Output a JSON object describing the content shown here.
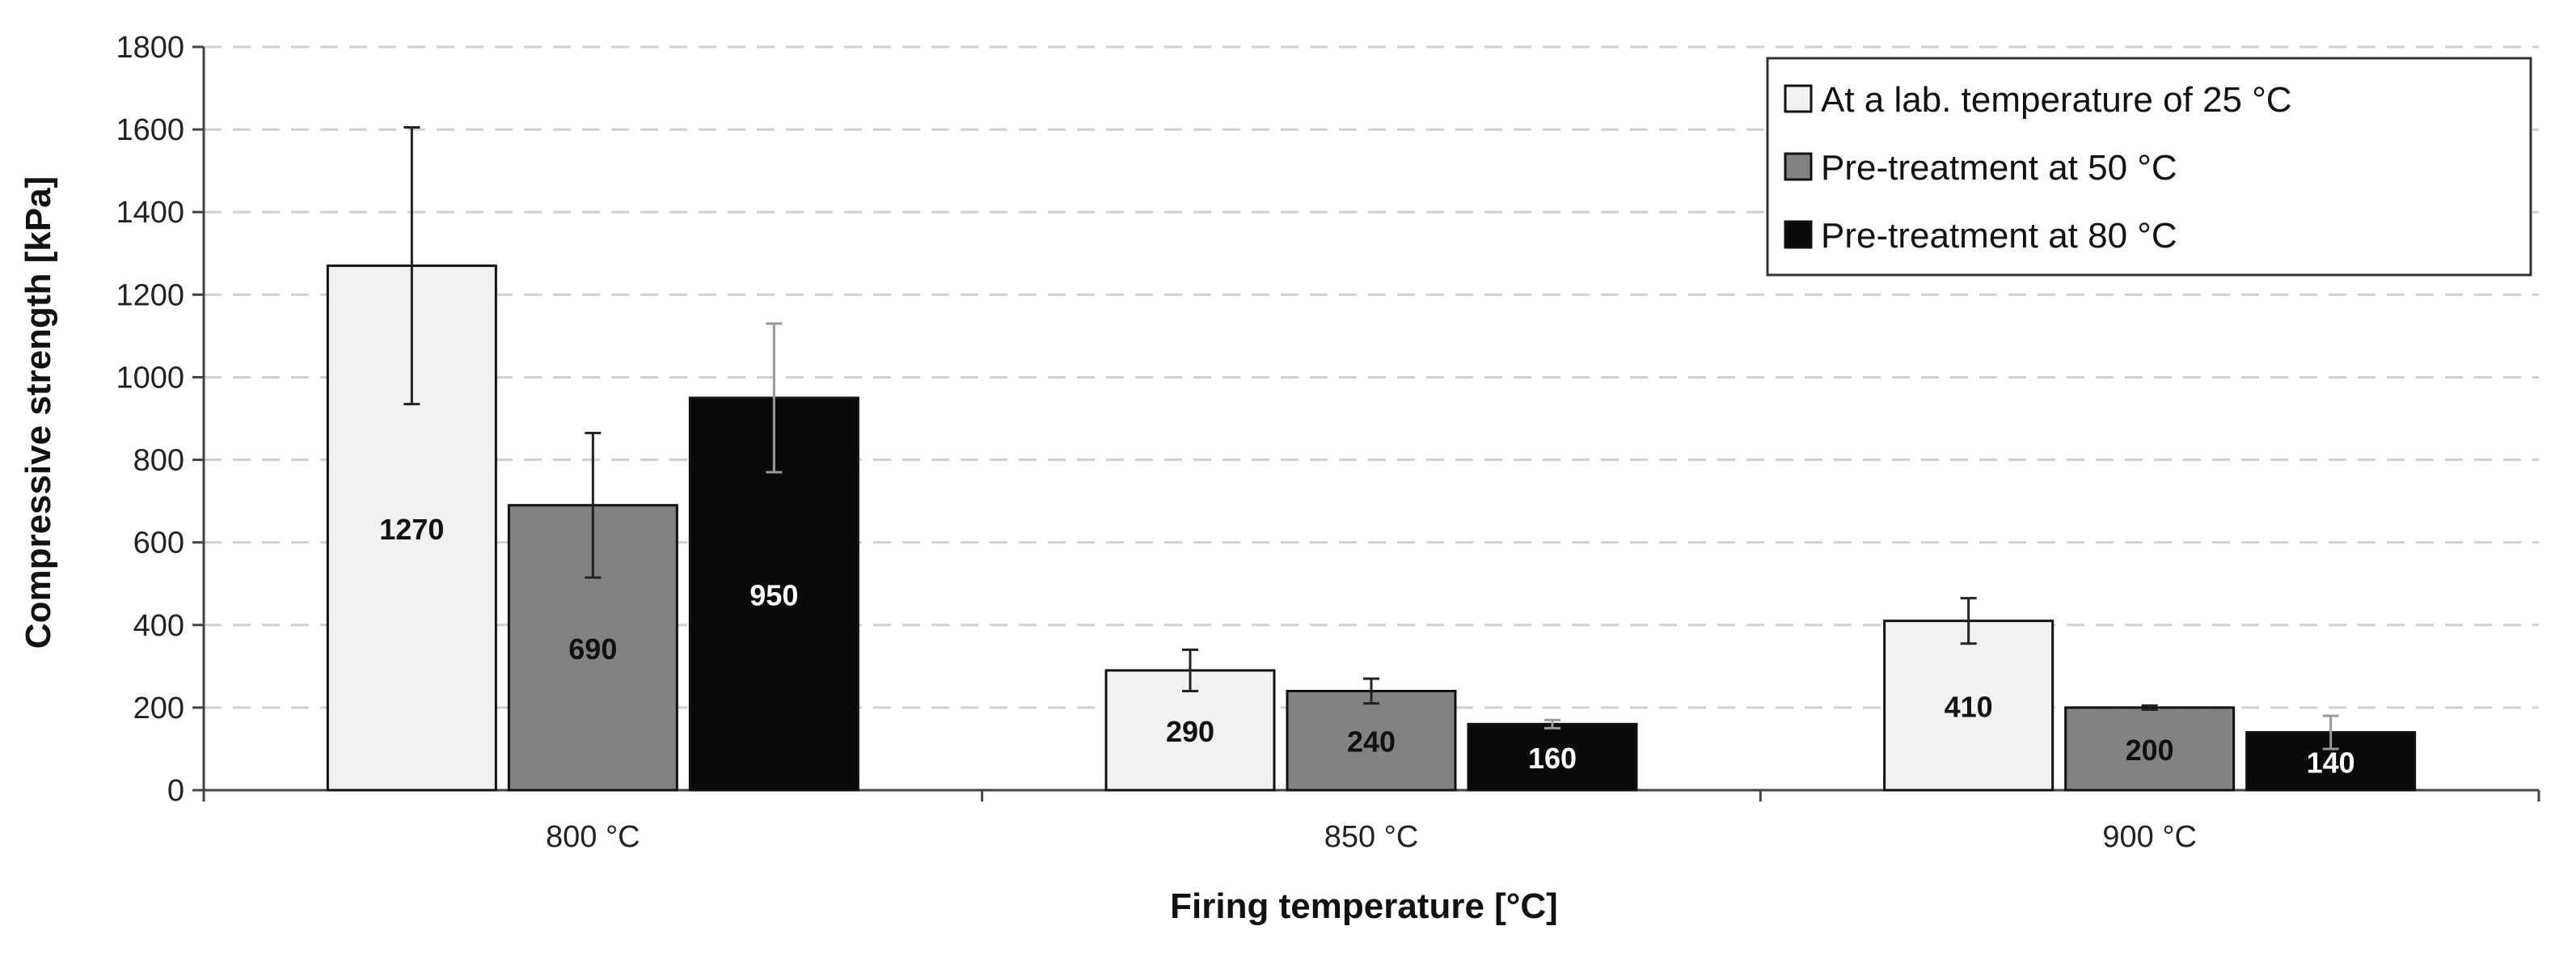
{
  "chart_data": {
    "type": "bar",
    "xlabel": "Firing temperature [°C]",
    "ylabel": "Compressive strength [kPa]",
    "ylim": [
      0,
      1800
    ],
    "yticks": [
      0,
      200,
      400,
      600,
      800,
      1000,
      1200,
      1400,
      1600,
      1800
    ],
    "grid": true,
    "legend_position": "top-right",
    "categories": [
      "800 °C",
      "850 °C",
      "900 °C"
    ],
    "series": [
      {
        "name": "At a lab. temperature of 25 °C",
        "color": "#f1f1f1",
        "label_color": "#111111",
        "values": [
          1270,
          290,
          410
        ],
        "errors": [
          335,
          50,
          55
        ]
      },
      {
        "name": "Pre-treatment at 50 °C",
        "color": "#828282",
        "label_color": "#111111",
        "values": [
          690,
          240,
          200
        ],
        "errors": [
          175,
          30,
          5
        ]
      },
      {
        "name": "Pre-treatment at 80 °C",
        "color": "#0a0a0a",
        "label_color": "#ffffff",
        "values": [
          950,
          160,
          140
        ],
        "errors": [
          180,
          10,
          40
        ]
      }
    ]
  }
}
